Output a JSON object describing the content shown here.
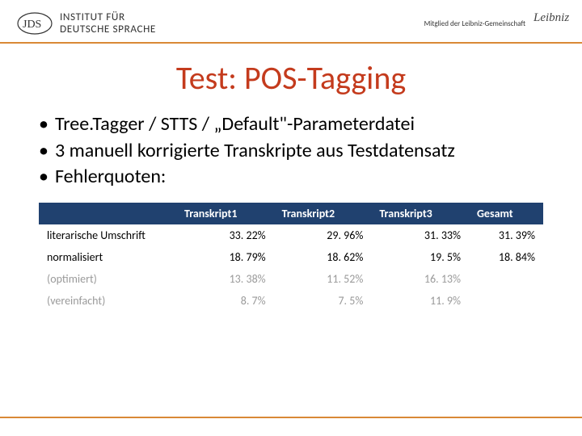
{
  "header": {
    "institute_line1": "INSTITUT FÜR",
    "institute_line2": "DEUTSCHE SPRACHE",
    "membership": "Mitglied der Leibniz-Gemeinschaft",
    "leibniz": "Leibniz"
  },
  "title": "Test: POS-Tagging",
  "bullets": [
    "Tree.Tagger / STTS / „Default\"-Parameterdatei",
    "3 manuell korrigierte Transkripte aus Testdatensatz",
    "Fehlerquoten:"
  ],
  "table": {
    "columns": [
      "Transkript1",
      "Transkript2",
      "Transkript3",
      "Gesamt"
    ],
    "rows": [
      {
        "label": "literarische Umschrift",
        "cells": [
          "33. 22%",
          "29. 96%",
          "31. 33%",
          "31. 39%"
        ],
        "gray": false
      },
      {
        "label": "normalisiert",
        "cells": [
          "18. 79%",
          "18. 62%",
          "19. 5%",
          "18. 84%"
        ],
        "gray": false
      },
      {
        "label": "(optimiert)",
        "cells": [
          "13. 38%",
          "11. 52%",
          "16. 13%",
          ""
        ],
        "gray": true
      },
      {
        "label": "(vereinfacht)",
        "cells": [
          "8. 7%",
          "7. 5%",
          "11. 9%",
          ""
        ],
        "gray": true
      }
    ],
    "header_bg": "#20416f",
    "header_fg": "#ffffff",
    "gray_fg": "#9a9a9a",
    "rule_color": "#d98936",
    "title_color": "#c43b1d"
  }
}
